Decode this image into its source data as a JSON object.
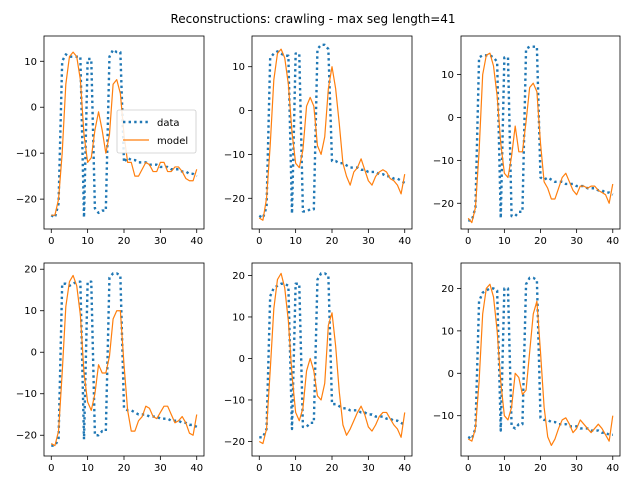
{
  "figure": {
    "title": "Reconstructions: crawling - max seg length=41"
  },
  "colors": {
    "data": "#1f77b4",
    "model": "#ff7f0e"
  },
  "chart_data": [
    {
      "type": "line",
      "xlim": [
        -2,
        42
      ],
      "ylim": [
        -26.5,
        15.5
      ],
      "xticks": [
        0,
        10,
        20,
        30,
        40
      ],
      "yticks": [
        -20,
        -10,
        0,
        10
      ],
      "legend": {
        "position": "center-right",
        "entries": [
          "data",
          "model"
        ]
      },
      "series": [
        {
          "name": "data",
          "style": "dotted",
          "x": [
            0,
            1,
            2,
            3,
            4,
            5,
            6,
            7,
            8,
            9,
            10,
            11,
            12,
            13,
            14,
            15,
            16,
            17,
            18,
            19,
            20,
            21,
            22,
            23,
            24,
            25,
            26,
            27,
            28,
            29,
            30,
            31,
            32,
            33,
            34,
            35,
            36,
            37,
            38,
            39,
            40
          ],
          "values": [
            -23.5,
            -24,
            -21,
            10,
            11.5,
            11,
            11,
            11,
            11,
            -24,
            10.5,
            10.5,
            -22,
            -23,
            -22.5,
            -22.5,
            11,
            12.5,
            12,
            12,
            -12,
            -11,
            -11.5,
            -11.5,
            -12,
            -12,
            -12,
            -12.5,
            -12.5,
            -12.5,
            -13,
            -13,
            -13,
            -13.5,
            -13.5,
            -13.5,
            -14,
            -14,
            -14.5,
            -14.5,
            -15
          ]
        },
        {
          "name": "model",
          "x": [
            0,
            1,
            2,
            3,
            4,
            5,
            6,
            7,
            8,
            9,
            10,
            11,
            12,
            13,
            14,
            15,
            16,
            17,
            18,
            19,
            20,
            21,
            22,
            23,
            24,
            25,
            26,
            27,
            28,
            29,
            30,
            31,
            32,
            33,
            34,
            35,
            36,
            37,
            38,
            39,
            40
          ],
          "values": [
            -23.5,
            -23.5,
            -20,
            -10,
            5,
            11,
            12,
            11,
            6,
            -6,
            -12,
            -11,
            -5,
            -1,
            -5,
            -10,
            -6,
            5,
            6,
            3,
            -6,
            -12,
            -12,
            -15,
            -15,
            -13.5,
            -12,
            -12.5,
            -14,
            -14,
            -12,
            -12,
            -14,
            -14,
            -13,
            -13,
            -14,
            -15.5,
            -16,
            -16,
            -13.5
          ]
        }
      ]
    },
    {
      "type": "line",
      "xlim": [
        -2,
        42
      ],
      "ylim": [
        -27,
        17
      ],
      "xticks": [
        0,
        10,
        20,
        30,
        40
      ],
      "yticks": [
        -20,
        -10,
        0,
        10
      ],
      "series": [
        {
          "name": "data",
          "style": "dotted",
          "x": [
            0,
            1,
            2,
            3,
            4,
            5,
            6,
            7,
            8,
            9,
            10,
            11,
            12,
            13,
            14,
            15,
            16,
            17,
            18,
            19,
            20,
            21,
            22,
            23,
            24,
            25,
            26,
            27,
            28,
            29,
            30,
            31,
            32,
            33,
            34,
            35,
            36,
            37,
            38,
            39,
            40
          ],
          "values": [
            -24,
            -24.5,
            -22,
            12,
            13,
            13.5,
            13,
            12.5,
            12.5,
            -23.5,
            13,
            13,
            -23,
            -23,
            -22.5,
            -22.5,
            14,
            15,
            15,
            14,
            -11.5,
            -11.5,
            -12,
            -12,
            -12.5,
            -13,
            -13,
            -13,
            -13.5,
            -13.5,
            -14,
            -14,
            -14,
            -14.5,
            -14.5,
            -15,
            -15,
            -15.5,
            -15.5,
            -16,
            -16.5
          ]
        },
        {
          "name": "model",
          "x": [
            0,
            1,
            2,
            3,
            4,
            5,
            6,
            7,
            8,
            9,
            10,
            11,
            12,
            13,
            14,
            15,
            16,
            17,
            18,
            19,
            20,
            21,
            22,
            23,
            24,
            25,
            26,
            27,
            28,
            29,
            30,
            31,
            32,
            33,
            34,
            35,
            36,
            37,
            38,
            39,
            40
          ],
          "values": [
            -24.5,
            -25,
            -20,
            -8,
            7,
            13,
            14,
            12,
            6,
            -5,
            -12,
            -13,
            -9,
            1,
            3,
            1,
            -8,
            -10,
            -6,
            5,
            10,
            5,
            -3,
            -12,
            -15,
            -17,
            -14,
            -13,
            -11,
            -13.5,
            -16,
            -17,
            -15,
            -14,
            -13.5,
            -14,
            -15.5,
            -16,
            -17,
            -19,
            -14.5
          ]
        }
      ]
    },
    {
      "type": "line",
      "xlim": [
        -2,
        42
      ],
      "ylim": [
        -26,
        19
      ],
      "xticks": [
        0,
        10,
        20,
        30,
        40
      ],
      "yticks": [
        -20,
        -10,
        0,
        10
      ],
      "series": [
        {
          "name": "data",
          "style": "dotted",
          "x": [
            0,
            1,
            2,
            3,
            4,
            5,
            6,
            7,
            8,
            9,
            10,
            11,
            12,
            13,
            14,
            15,
            16,
            17,
            18,
            19,
            20,
            21,
            22,
            23,
            24,
            25,
            26,
            27,
            28,
            29,
            30,
            31,
            32,
            33,
            34,
            35,
            36,
            37,
            38,
            39,
            40
          ],
          "values": [
            -24,
            -24,
            -21,
            14,
            14.5,
            14.5,
            14.5,
            14,
            13,
            -23.5,
            14,
            14,
            -23,
            -23,
            -22,
            -22,
            16,
            16.5,
            16.5,
            16.5,
            -14,
            -14.5,
            -14,
            -14.5,
            -15,
            -15,
            -15,
            -15.5,
            -15.5,
            -15.5,
            -16,
            -16,
            -16,
            -16.5,
            -16.5,
            -16.5,
            -17,
            -17,
            -17.5,
            -17.5,
            -18
          ]
        },
        {
          "name": "model",
          "x": [
            0,
            1,
            2,
            3,
            4,
            5,
            6,
            7,
            8,
            9,
            10,
            11,
            12,
            13,
            14,
            15,
            16,
            17,
            18,
            19,
            20,
            21,
            22,
            23,
            24,
            25,
            26,
            27,
            28,
            29,
            30,
            31,
            32,
            33,
            34,
            35,
            36,
            37,
            38,
            39,
            40
          ],
          "values": [
            -23.5,
            -24.5,
            -21,
            -8,
            10,
            14.5,
            15,
            12,
            5,
            -6,
            -13,
            -14,
            -9,
            -2,
            -8,
            -8,
            -1,
            7,
            8,
            6,
            -6,
            -15,
            -16.5,
            -19,
            -19,
            -16.5,
            -14,
            -13,
            -15,
            -17,
            -18,
            -16,
            -16,
            -16.5,
            -16,
            -16,
            -17,
            -17.5,
            -18,
            -20,
            -15.5
          ]
        }
      ]
    },
    {
      "type": "line",
      "xlim": [
        -2,
        42
      ],
      "ylim": [
        -25,
        21.5
      ],
      "xticks": [
        0,
        10,
        20,
        30,
        40
      ],
      "yticks": [
        -20,
        -10,
        0,
        10,
        20
      ],
      "series": [
        {
          "name": "data",
          "style": "dotted",
          "x": [
            0,
            1,
            2,
            3,
            4,
            5,
            6,
            7,
            8,
            9,
            10,
            11,
            12,
            13,
            14,
            15,
            16,
            17,
            18,
            19,
            20,
            21,
            22,
            23,
            24,
            25,
            26,
            27,
            28,
            29,
            30,
            31,
            32,
            33,
            34,
            35,
            36,
            37,
            38,
            39,
            40
          ],
          "values": [
            -22.5,
            -22.5,
            -21,
            16.5,
            16.5,
            16,
            16.5,
            17,
            17,
            -21,
            17,
            17,
            -20,
            -20,
            -19,
            -19,
            18,
            19,
            19,
            18.5,
            -13.5,
            -14,
            -14,
            -14.5,
            -15,
            -15,
            -15,
            -15.5,
            -15.5,
            -15.5,
            -16,
            -16,
            -16,
            -16.5,
            -16.5,
            -16.5,
            -17,
            -17,
            -17.5,
            -17.5,
            -18
          ]
        },
        {
          "name": "model",
          "x": [
            0,
            1,
            2,
            3,
            4,
            5,
            6,
            7,
            8,
            9,
            10,
            11,
            12,
            13,
            14,
            15,
            16,
            17,
            18,
            19,
            20,
            21,
            22,
            23,
            24,
            25,
            26,
            27,
            28,
            29,
            30,
            31,
            32,
            33,
            34,
            35,
            36,
            37,
            38,
            39,
            40
          ],
          "values": [
            -22,
            -22.5,
            -19,
            -5,
            11,
            17,
            18.5,
            16,
            9,
            -5,
            -12,
            -14,
            -10,
            -3,
            -5,
            -5,
            -1,
            8,
            10,
            10,
            -3,
            -14,
            -19,
            -19,
            -16.5,
            -15.5,
            -13,
            -13.5,
            -15.5,
            -16,
            -14.5,
            -13,
            -13,
            -15,
            -17,
            -16.5,
            -15.5,
            -17,
            -19.5,
            -20,
            -15
          ]
        }
      ]
    },
    {
      "type": "line",
      "xlim": [
        -2,
        42
      ],
      "ylim": [
        -23.5,
        23
      ],
      "xticks": [
        0,
        10,
        20,
        30,
        40
      ],
      "yticks": [
        -20,
        -10,
        0,
        10,
        20
      ],
      "series": [
        {
          "name": "data",
          "style": "dotted",
          "x": [
            0,
            1,
            2,
            3,
            4,
            5,
            6,
            7,
            8,
            9,
            10,
            11,
            12,
            13,
            14,
            15,
            16,
            17,
            18,
            19,
            20,
            21,
            22,
            23,
            24,
            25,
            26,
            27,
            28,
            29,
            30,
            31,
            32,
            33,
            34,
            35,
            36,
            37,
            38,
            39,
            40
          ],
          "values": [
            -19,
            -19,
            -17,
            15,
            17,
            17.5,
            18,
            18,
            17.5,
            -17,
            18,
            18,
            -16.5,
            -16.5,
            -15.5,
            -15.5,
            19,
            20.5,
            20.5,
            20,
            -11,
            -11,
            -11.5,
            -12,
            -12,
            -12.5,
            -12.5,
            -12.5,
            -13,
            -13,
            -13.5,
            -13.5,
            -14,
            -14,
            -14,
            -14.5,
            -14.5,
            -15,
            -15,
            -15.5,
            -16
          ]
        },
        {
          "name": "model",
          "x": [
            0,
            1,
            2,
            3,
            4,
            5,
            6,
            7,
            8,
            9,
            10,
            11,
            12,
            13,
            14,
            15,
            16,
            17,
            18,
            19,
            20,
            21,
            22,
            23,
            24,
            25,
            26,
            27,
            28,
            29,
            30,
            31,
            32,
            33,
            34,
            35,
            36,
            37,
            38,
            39,
            40
          ],
          "values": [
            -20,
            -20.5,
            -17,
            -3,
            12,
            19,
            20.5,
            17,
            9,
            -4,
            -13,
            -15,
            -12,
            -3,
            0,
            -3,
            -9,
            -10,
            -6,
            8,
            11,
            3,
            -8,
            -16,
            -18.5,
            -17,
            -15,
            -13,
            -11.5,
            -13.5,
            -16.5,
            -17.5,
            -16,
            -14,
            -13,
            -13,
            -14.5,
            -16,
            -17,
            -19,
            -13
          ]
        }
      ]
    },
    {
      "type": "line",
      "xlim": [
        -2,
        42
      ],
      "ylim": [
        -19.5,
        26
      ],
      "xticks": [
        0,
        10,
        20,
        30,
        40
      ],
      "yticks": [
        -10,
        0,
        10,
        20
      ],
      "series": [
        {
          "name": "data",
          "style": "dotted",
          "x": [
            0,
            1,
            2,
            3,
            4,
            5,
            6,
            7,
            8,
            9,
            10,
            11,
            12,
            13,
            14,
            15,
            16,
            17,
            18,
            19,
            20,
            21,
            22,
            23,
            24,
            25,
            26,
            27,
            28,
            29,
            30,
            31,
            32,
            33,
            34,
            35,
            36,
            37,
            38,
            39,
            40
          ],
          "values": [
            -15,
            -15.5,
            -13,
            17,
            19,
            19.5,
            20,
            20,
            19.5,
            -13.5,
            20,
            20,
            -12.5,
            -13,
            -12,
            -12,
            21,
            22.5,
            22.5,
            22,
            -10.5,
            -11,
            -11,
            -11.5,
            -11.5,
            -12,
            -12,
            -12,
            -12.5,
            -12.5,
            -12.5,
            -13,
            -13,
            -13,
            -13.5,
            -13.5,
            -13.5,
            -14,
            -14,
            -14.5,
            -14.5
          ]
        },
        {
          "name": "model",
          "x": [
            0,
            1,
            2,
            3,
            4,
            5,
            6,
            7,
            8,
            9,
            10,
            11,
            12,
            13,
            14,
            15,
            16,
            17,
            18,
            19,
            20,
            21,
            22,
            23,
            24,
            25,
            26,
            27,
            28,
            29,
            30,
            31,
            32,
            33,
            34,
            35,
            36,
            37,
            38,
            39,
            40
          ],
          "values": [
            -15.5,
            -16,
            -13,
            -2,
            14,
            20,
            21,
            18,
            10,
            -2,
            -10,
            -11,
            -8,
            0,
            -1,
            -5,
            -4,
            5,
            14,
            17,
            5,
            -8,
            -15,
            -17,
            -15.5,
            -13,
            -11,
            -10.5,
            -12,
            -14,
            -13,
            -11,
            -12,
            -13,
            -14,
            -13,
            -12,
            -13,
            -14.5,
            -16,
            -10
          ]
        }
      ]
    }
  ]
}
